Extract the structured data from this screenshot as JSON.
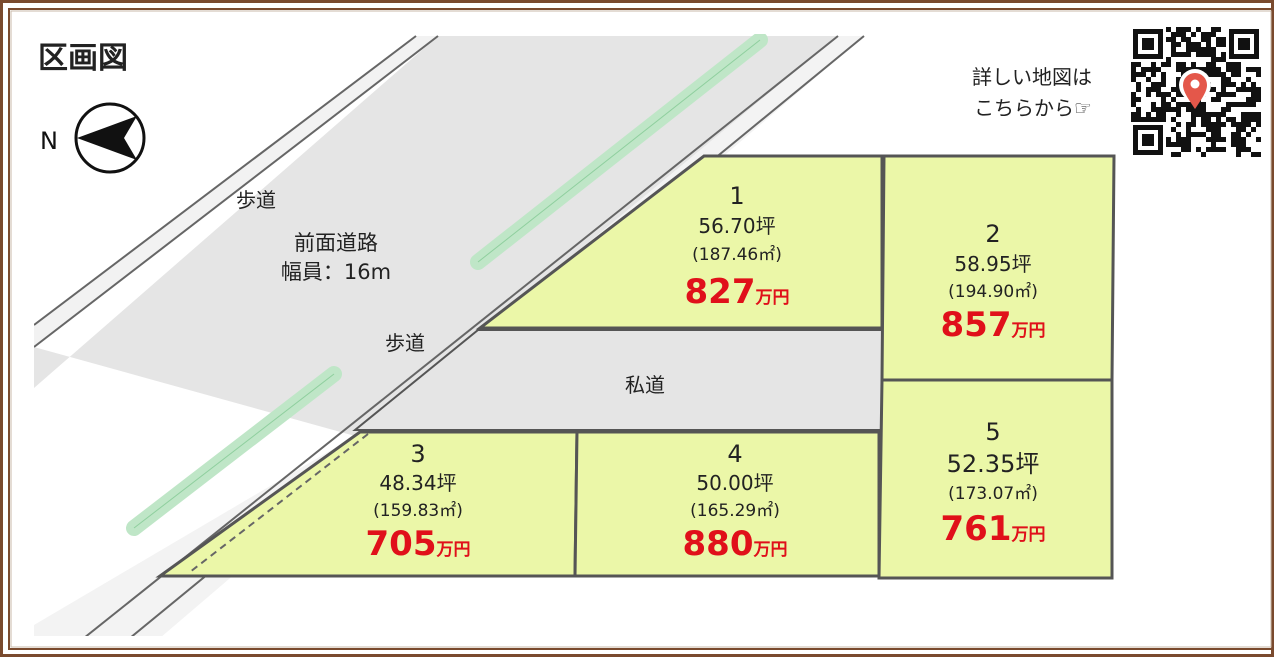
{
  "title": "区画図",
  "compass": {
    "label": "N"
  },
  "road": {
    "sidewalk_label": "歩道",
    "name": "前面道路",
    "width": "幅員：16m"
  },
  "private_road": "私道",
  "map_link": {
    "line1": "詳しい地図は",
    "line2": "こちらから☞"
  },
  "price_unit": "万円",
  "lots": [
    {
      "number": "1",
      "tsubo": "56.70坪",
      "sqm": "(187.46㎡)",
      "price": "827"
    },
    {
      "number": "2",
      "tsubo": "58.95坪",
      "sqm": "(194.90㎡)",
      "price": "857"
    },
    {
      "number": "3",
      "tsubo": "48.34坪",
      "sqm": "(159.83㎡)",
      "price": "705"
    },
    {
      "number": "4",
      "tsubo": "50.00坪",
      "sqm": "(165.29㎡)",
      "price": "880"
    },
    {
      "number": "5",
      "tsubo": "52.35坪",
      "sqm": "(173.07㎡)",
      "price": "761"
    }
  ],
  "colors": {
    "frame": "#7a4a2e",
    "lot_fill": "#ebf7a8",
    "lot_stroke": "#555555",
    "road_fill": "#e5e5e5",
    "sidewalk_fill": "#f3f3f3",
    "green_strip": "#bfe6c7",
    "price_red": "#e0101a"
  }
}
